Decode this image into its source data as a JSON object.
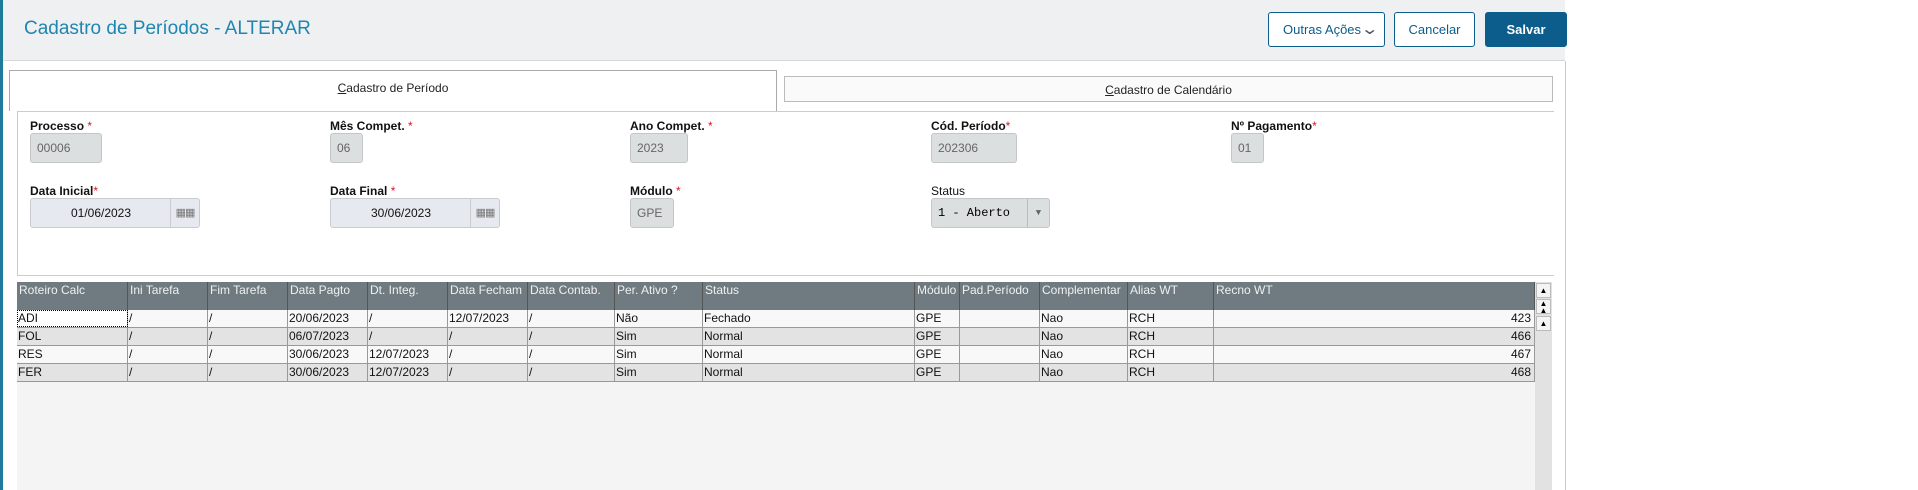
{
  "header": {
    "title": "Cadastro de Períodos - ALTERAR",
    "other_actions": "Outras Ações",
    "cancel": "Cancelar",
    "save": "Salvar"
  },
  "colors": {
    "accent": "#0c5d8c",
    "title": "#1f86b0",
    "grid_header": "#6f7b80",
    "required": "#e0102a"
  },
  "tabs": [
    {
      "label": "Cadastro de Período",
      "hotkey": "C",
      "rest": "adastro de Período",
      "active": true
    },
    {
      "label": "Cadastro de Calendário",
      "hotkey": "C",
      "rest": "adastro de Calendário",
      "active": false
    }
  ],
  "form": {
    "processo": {
      "label": "Processo",
      "value": "00006"
    },
    "mes": {
      "label": "Mês Compet.",
      "value": "06"
    },
    "ano": {
      "label": "Ano Compet.",
      "value": "2023"
    },
    "cod": {
      "label": "Cód. Período",
      "value": "202306"
    },
    "pag": {
      "label": "Nº Pagamento",
      "value": "01"
    },
    "data_inicial": {
      "label": "Data Inicial",
      "value": "01/06/2023"
    },
    "data_final": {
      "label": "Data Final",
      "value": "30/06/2023"
    },
    "modulo": {
      "label": "Módulo",
      "value": "GPE"
    },
    "status": {
      "label": "Status",
      "value": "1 - Aberto"
    },
    "required_mark": "*"
  },
  "grid": {
    "columns": [
      "Roteiro Calc",
      "Ini Tarefa",
      "Fim Tarefa",
      "Data Pagto",
      "Dt. Integ.",
      "Data Fecham",
      "Data Contab.",
      "Per. Ativo ?",
      "Status",
      "Módulo",
      "Pad.Período",
      "Complementar",
      "Alias WT",
      "Recno WT"
    ],
    "rows": [
      [
        "ADI",
        " / ",
        " / ",
        "20/06/2023",
        " / ",
        "12/07/2023",
        " / ",
        "Não",
        "Fechado",
        "GPE",
        "",
        "Nao",
        "RCH",
        "423"
      ],
      [
        "FOL",
        " / ",
        " / ",
        "06/07/2023",
        " / ",
        " / ",
        " / ",
        "Sim",
        "Normal",
        "GPE",
        "",
        "Nao",
        "RCH",
        "466"
      ],
      [
        "RES",
        " / ",
        " / ",
        "30/06/2023",
        "12/07/2023",
        " / ",
        " / ",
        "Sim",
        "Normal",
        "GPE",
        "",
        "Nao",
        "RCH",
        "467"
      ],
      [
        "FER",
        " / ",
        " / ",
        "30/06/2023",
        "12/07/2023",
        " / ",
        " / ",
        "Sim",
        "Normal",
        "GPE",
        "",
        "Nao",
        "RCH",
        "468"
      ]
    ]
  }
}
